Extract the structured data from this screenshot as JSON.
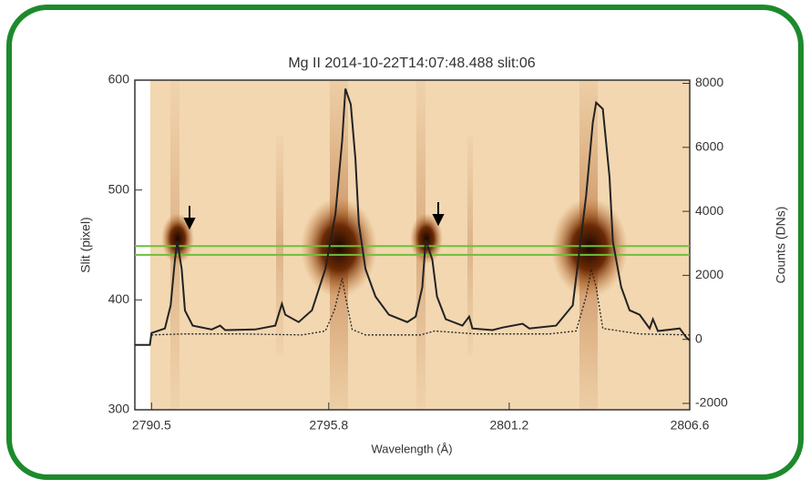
{
  "chart_data": {
    "type": "line",
    "title": "Mg II  2014-10-22T14:07:48.488 slit:06",
    "xlabel": "Wavelength (Å)",
    "ylabel": "Slit (pixel)",
    "y2label": "Counts (DNs)",
    "xlim": [
      2790.0,
      2806.6
    ],
    "xticks": [
      2790.5,
      2795.8,
      2801.2,
      2806.6
    ],
    "ylim": [
      300,
      600
    ],
    "yticks": [
      300,
      400,
      500,
      600
    ],
    "y2lim": [
      -2200,
      8100
    ],
    "y2ticks": [
      -2000,
      0,
      2000,
      4000,
      6000,
      8000
    ],
    "hlines": [
      449,
      441
    ],
    "hline_color": "#6fbf3a",
    "series": [
      {
        "color": "#222222",
        "style": "solid",
        "axis": "y2",
        "x": [
          2790.0,
          2790.45,
          2790.5,
          2790.9,
          2791.07,
          2791.2,
          2791.27,
          2791.4,
          2791.5,
          2791.73,
          2792.3,
          2792.55,
          2792.7,
          2793.6,
          2794.2,
          2794.4,
          2794.5,
          2794.9,
          2795.3,
          2795.7,
          2796.0,
          2796.2,
          2796.3,
          2796.46,
          2796.6,
          2796.7,
          2796.9,
          2797.2,
          2797.6,
          2798.15,
          2798.4,
          2798.6,
          2798.7,
          2798.9,
          2799.04,
          2799.3,
          2799.8,
          2800.0,
          2800.1,
          2800.7,
          2801.0,
          2801.6,
          2801.8,
          2802.6,
          2803.1,
          2803.5,
          2803.7,
          2803.8,
          2804.0,
          2804.2,
          2804.3,
          2804.55,
          2804.8,
          2805.1,
          2805.4,
          2805.5,
          2805.65,
          2806.3,
          2806.5,
          2806.6
        ],
        "values": [
          -170,
          -170,
          200,
          340,
          1060,
          2490,
          3060,
          2200,
          900,
          430,
          310,
          430,
          290,
          310,
          430,
          1110,
          770,
          540,
          910,
          2200,
          3910,
          6200,
          7830,
          7340,
          5630,
          3630,
          2200,
          1340,
          770,
          540,
          710,
          1630,
          3110,
          2490,
          1340,
          630,
          430,
          710,
          340,
          290,
          370,
          490,
          340,
          430,
          1060,
          4490,
          6770,
          7400,
          7200,
          5060,
          3060,
          1630,
          910,
          770,
          340,
          630,
          260,
          340,
          60,
          -30
        ]
      },
      {
        "color": "#222222",
        "style": "dotted",
        "axis": "y2",
        "x": [
          2790.5,
          2791.45,
          2793.1,
          2795.0,
          2795.7,
          2795.97,
          2796.2,
          2796.3,
          2796.5,
          2796.9,
          2798.55,
          2798.96,
          2800.2,
          2802.4,
          2803.2,
          2803.5,
          2803.66,
          2803.8,
          2804.0,
          2805.1,
          2806.6
        ],
        "values": [
          140,
          170,
          170,
          140,
          260,
          910,
          1910,
          1340,
          310,
          140,
          140,
          260,
          170,
          170,
          260,
          1340,
          2200,
          1630,
          340,
          170,
          140
        ]
      }
    ]
  }
}
